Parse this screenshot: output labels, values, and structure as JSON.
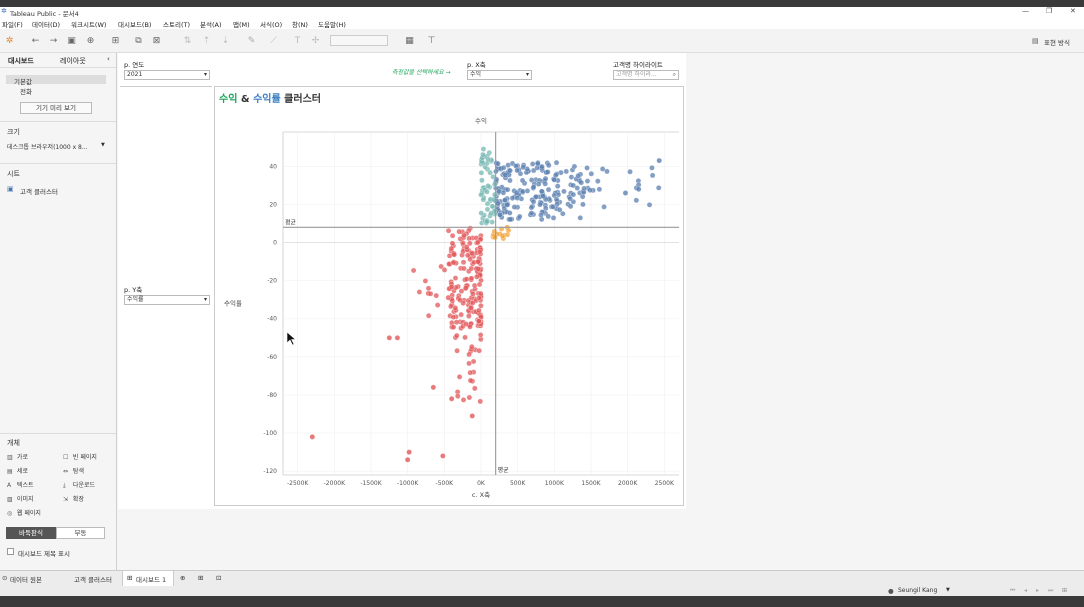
{
  "window": {
    "title": "Tableau Public - 문서4",
    "minimize": "—",
    "restore": "❐",
    "close": "✕"
  },
  "menu": [
    "파일(F)",
    "데이터(D)",
    "워크시트(W)",
    "대시보드(B)",
    "스토리(T)",
    "분석(A)",
    "맵(M)",
    "서식(O)",
    "창(N)",
    "도움말(H)"
  ],
  "toolbar": {
    "presentation_mode": "표현 방식"
  },
  "left_panel": {
    "tab_dashboard": "대시보드",
    "tab_layout": "레이아웃",
    "collapse": "‹",
    "device_default": "기본값",
    "device_phone": "전화",
    "device_preview": "기기 미리 보기",
    "size_head": "크기",
    "size_value": "데스크톱 브라우저(1000 x 8...",
    "sheets_head": "시트",
    "sheet_item": "고객 클러스터",
    "objects_head": "개체",
    "objects": [
      {
        "icon": "▥",
        "label": "가로"
      },
      {
        "icon": "☐",
        "label": "빈 페이지"
      },
      {
        "icon": "▤",
        "label": "세로"
      },
      {
        "icon": "⇔",
        "label": "탐색"
      },
      {
        "icon": "A",
        "label": "텍스트"
      },
      {
        "icon": "⤓",
        "label": "다운로드"
      },
      {
        "icon": "▨",
        "label": "이미지"
      },
      {
        "icon": "⇲",
        "label": "확장"
      },
      {
        "icon": "◎",
        "label": "웹 페이지"
      }
    ],
    "tiled": "바둑판식",
    "floating": "부동",
    "show_title": "대시보드 제목 표시"
  },
  "filters": {
    "year_label": "p. 연도",
    "year_value": "2021",
    "hint": "측정값을 선택하세요 →",
    "x_label": "p. X축",
    "x_value": "수익",
    "highlight_label": "고객명 하이라이트",
    "highlight_placeholder": "고객명 하이라...",
    "y_label": "p. Y축",
    "y_value": "수익률"
  },
  "colors": {
    "green": "#1aa35a",
    "blue_title": "#3b7fc4",
    "cluster_blue": "#5b7fb0",
    "cluster_teal": "#76b7b2",
    "cluster_red": "#e15759",
    "cluster_orange": "#f2a33a"
  },
  "chart_data": {
    "type": "scatter",
    "title_part1": "수익",
    "title_amp": " & ",
    "title_part2": "수익률",
    "title_part3": " 클러스터",
    "x_header": "수익",
    "xlabel": "c. X축",
    "ylabel": "수익률",
    "avg_label_h": "평균",
    "avg_label_v": "평균",
    "xlim": [
      -2700,
      2700
    ],
    "ylim": [
      -122,
      58
    ],
    "avg_x": 200,
    "avg_y": 8,
    "x_ticks": [
      {
        "v": -2500,
        "label": "-2500K"
      },
      {
        "v": -2000,
        "label": "-2000K"
      },
      {
        "v": -1500,
        "label": "-1500K"
      },
      {
        "v": -1000,
        "label": "-1000K"
      },
      {
        "v": -500,
        "label": "-500K"
      },
      {
        "v": 0,
        "label": "0K"
      },
      {
        "v": 500,
        "label": "500K"
      },
      {
        "v": 1000,
        "label": "1000K"
      },
      {
        "v": 1500,
        "label": "1500K"
      },
      {
        "v": 2000,
        "label": "2000K"
      },
      {
        "v": 2500,
        "label": "2500K"
      }
    ],
    "y_ticks": [
      40,
      20,
      0,
      -20,
      -40,
      -60,
      -80,
      -100,
      -120
    ],
    "clusters": [
      {
        "color": "#5b7fb0",
        "x_range": [
          200,
          1400
        ],
        "y_range": [
          12,
          42
        ],
        "count": 190
      },
      {
        "color": "#5b7fb0",
        "x_range": [
          1200,
          2500
        ],
        "y_range": [
          18,
          40
        ],
        "count": 30
      },
      {
        "color": "#76b7b2",
        "x_range": [
          0,
          200
        ],
        "y_range": [
          10,
          50
        ],
        "count": 55
      },
      {
        "color": "#f2a33a",
        "x_range": [
          150,
          400
        ],
        "y_range": [
          2,
          8
        ],
        "count": 14
      },
      {
        "color": "#e15759",
        "x_range": [
          -450,
          0
        ],
        "y_range": [
          -45,
          8
        ],
        "count": 160
      },
      {
        "color": "#e15759",
        "x_range": [
          -350,
          0
        ],
        "y_range": [
          -85,
          -40
        ],
        "count": 30
      },
      {
        "color": "#e15759",
        "x_range": [
          -1000,
          -400
        ],
        "y_range": [
          -40,
          -10
        ],
        "count": 15
      }
    ],
    "outliers": [
      {
        "x": -2300,
        "y": -102,
        "color": "#e15759"
      },
      {
        "x": -1140,
        "y": -50,
        "color": "#e15759"
      },
      {
        "x": -980,
        "y": -110,
        "color": "#e15759"
      },
      {
        "x": -1000,
        "y": -114,
        "color": "#e15759"
      },
      {
        "x": -520,
        "y": -112,
        "color": "#e15759"
      },
      {
        "x": -400,
        "y": -82,
        "color": "#e15759"
      },
      {
        "x": -650,
        "y": -76,
        "color": "#e15759"
      },
      {
        "x": -1250,
        "y": -50,
        "color": "#e15759"
      },
      {
        "x": -120,
        "y": -91,
        "color": "#e15759"
      },
      {
        "x": 2430,
        "y": 43,
        "color": "#5b7fb0"
      },
      {
        "x": 2150,
        "y": 28,
        "color": "#5b7fb0"
      },
      {
        "x": 1970,
        "y": 26,
        "color": "#5b7fb0"
      }
    ]
  },
  "status": {
    "tab_datasource": "데이터 원본",
    "tab_sheet": "고객 클러스터",
    "tab_dashboard": "대시보드 1",
    "user": "Seungil Kang"
  }
}
